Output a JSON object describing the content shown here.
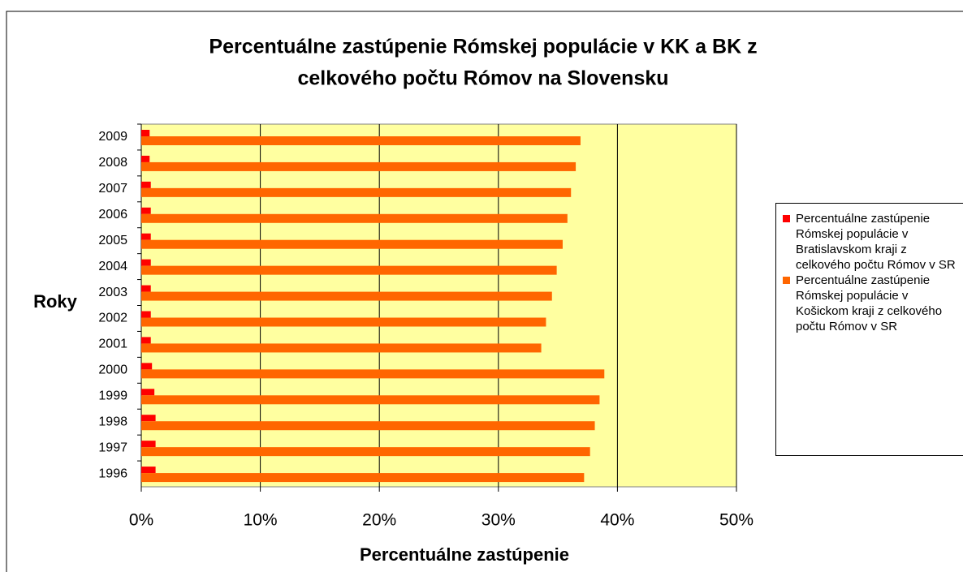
{
  "chart_data": {
    "type": "bar",
    "orientation": "horizontal",
    "title": [
      "Percentuálne zastúpenie Rómskej populácie v KK a BK z",
      "celkového počtu Rómov na Slovensku"
    ],
    "x_label": "Percentuálne zastúpenie",
    "y_label": "Roky",
    "categories": [
      "1996",
      "1997",
      "1998",
      "1999",
      "2000",
      "2001",
      "2002",
      "2003",
      "2004",
      "2005",
      "2006",
      "2007",
      "2008",
      "2009"
    ],
    "series": [
      {
        "name": "Percentuálne zastúpenie Rómskej populácie v Bratislavskom kraji z celkového počtu Rómov v SR",
        "color": "#ff0000",
        "values": [
          1.2,
          1.2,
          1.2,
          1.1,
          0.9,
          0.8,
          0.8,
          0.8,
          0.8,
          0.8,
          0.8,
          0.8,
          0.7,
          0.7
        ]
      },
      {
        "name": "Percentuálne zastúpenie Rómskej populácie v Košickom kraji z celkového počtu Rómov v SR",
        "color": "#ff6600",
        "values": [
          37.2,
          37.7,
          38.1,
          38.5,
          38.9,
          33.6,
          34.0,
          34.5,
          34.9,
          35.4,
          35.8,
          36.1,
          36.5,
          36.9
        ]
      }
    ],
    "xlim": [
      0,
      50
    ],
    "xticks": [
      {
        "value": 0,
        "label": "0%"
      },
      {
        "value": 10,
        "label": "10%"
      },
      {
        "value": 20,
        "label": "20%"
      },
      {
        "value": 30,
        "label": "30%"
      },
      {
        "value": 40,
        "label": "40%"
      },
      {
        "value": 50,
        "label": "50%"
      }
    ],
    "grid": true,
    "plot_background": "#ffffa0",
    "legend": "right"
  }
}
